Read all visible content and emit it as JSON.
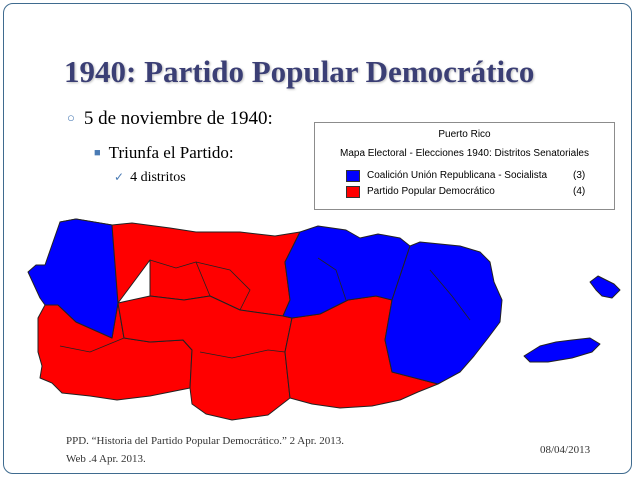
{
  "slide": {
    "title": "1940: Partido Popular Democrático",
    "bullet1": "5 de noviembre de 1940:",
    "bullet2": "Triunfa el Partido:",
    "bullet3": "4 distritos",
    "footer": "PPD. “Historia del Partido Popular Democrático.” 2 Apr. 2013. Web .4 Apr. 2013.",
    "date": "08/04/2013"
  },
  "legend": {
    "title": "Puerto Rico",
    "subtitle": "Mapa Electoral - Elecciones 1940:  Distritos Senatoriales",
    "entries": [
      {
        "name": "Coalición Unión Republicana - Socialista",
        "count": "(3)",
        "color": "#0000ff"
      },
      {
        "name": "Partido Popular Democrático",
        "count": "(4)",
        "color": "#ff0000"
      }
    ]
  },
  "map": {
    "region": "Puerto Rico",
    "colors": {
      "coalition": "#0000ff",
      "ppd": "#ff0000"
    },
    "districts": [
      {
        "party": "coalition"
      },
      {
        "party": "ppd"
      },
      {
        "party": "coalition"
      },
      {
        "party": "ppd"
      },
      {
        "party": "ppd"
      },
      {
        "party": "ppd"
      },
      {
        "party": "coalition"
      }
    ]
  }
}
